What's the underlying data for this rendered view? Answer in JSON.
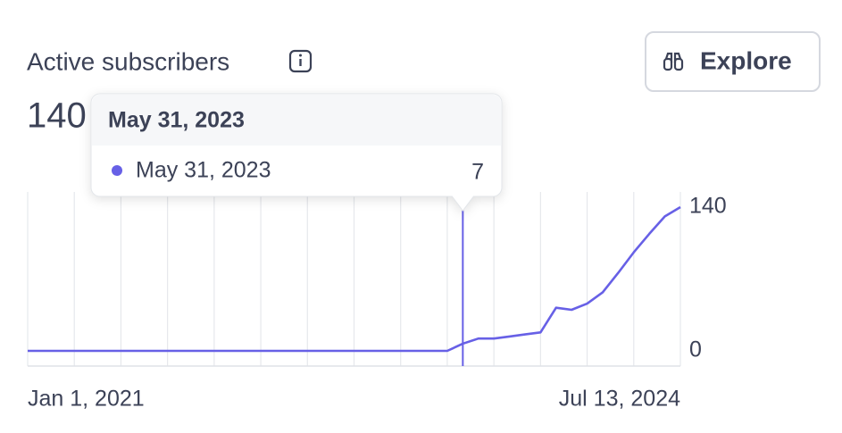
{
  "chart_data": {
    "type": "line",
    "title": "Active subscribers",
    "current_value": 140,
    "button": "Explore",
    "categories": [
      "Jan 1, 2021",
      null,
      null,
      null,
      null,
      null,
      null,
      null,
      null,
      null,
      null,
      null,
      null,
      null,
      null,
      null,
      null,
      null,
      null,
      null,
      null,
      null,
      null,
      null,
      null,
      null,
      null,
      null,
      "May 31, 2023",
      null,
      null,
      null,
      null,
      null,
      null,
      null,
      null,
      null,
      null,
      null,
      null,
      null,
      "Jul 13, 2024"
    ],
    "series": [
      {
        "name": "May 31, 2023",
        "color": "#6760e6",
        "values": [
          0,
          0,
          0,
          0,
          0,
          0,
          0,
          0,
          0,
          0,
          0,
          0,
          0,
          0,
          0,
          0,
          0,
          0,
          0,
          0,
          0,
          0,
          0,
          0,
          0,
          0,
          0,
          0,
          7,
          12,
          12,
          14,
          16,
          18,
          42,
          40,
          46,
          57,
          76,
          96,
          114,
          131,
          140
        ]
      }
    ],
    "ylim": [
      0,
      140
    ],
    "yticks": [
      0,
      140
    ],
    "grid": true
  }
}
